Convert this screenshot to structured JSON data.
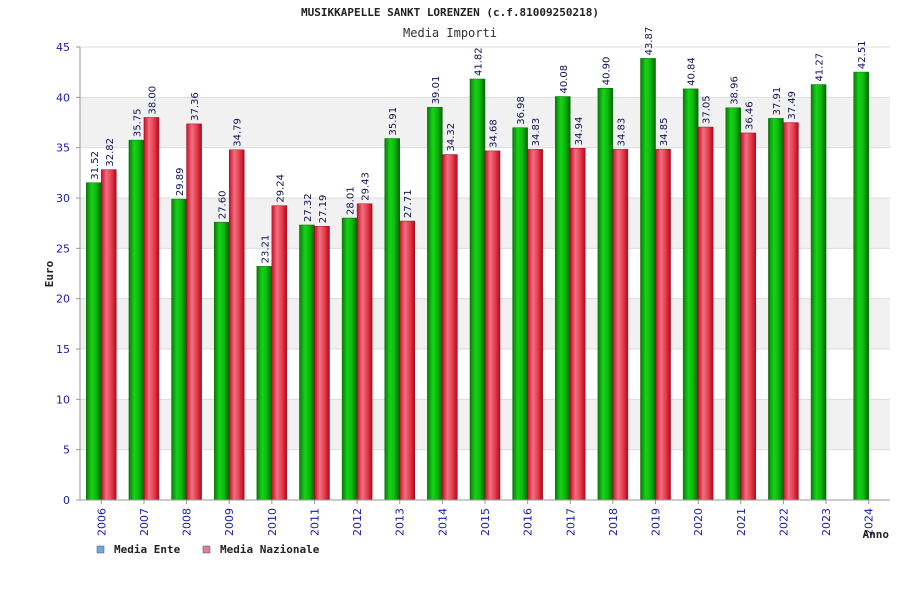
{
  "chart_data": {
    "type": "bar",
    "title": "MUSIKKAPELLE SANKT LORENZEN (c.f.81009250218)",
    "subtitle": "Media Importi",
    "xlabel": "Anno",
    "ylabel": "Euro",
    "ylim": [
      0,
      45
    ],
    "yticks": [
      0,
      5,
      10,
      15,
      20,
      25,
      30,
      35,
      40,
      45
    ],
    "grid": true,
    "legend_position": "bottom-left",
    "categories": [
      "2006",
      "2007",
      "2008",
      "2009",
      "2010",
      "2011",
      "2012",
      "2013",
      "2014",
      "2015",
      "2016",
      "2017",
      "2018",
      "2019",
      "2020",
      "2021",
      "2022",
      "2023",
      "2024"
    ],
    "series": [
      {
        "name": "Media Ente",
        "legend_color": "#6fa8e6",
        "bar_color": "#10b010",
        "values": [
          31.52,
          35.75,
          29.89,
          27.6,
          23.21,
          27.32,
          28.01,
          35.91,
          39.01,
          41.82,
          36.98,
          40.08,
          40.9,
          43.87,
          40.84,
          38.96,
          37.91,
          41.27,
          42.51
        ],
        "labels": [
          "31.52",
          "35.75",
          "29.89",
          "27.60",
          "23.21",
          "27.32",
          "28.01",
          "35.91",
          "39.01",
          "41.82",
          "36.98",
          "40.08",
          "40.90",
          "43.87",
          "40.84",
          "38.96",
          "37.91",
          "41.27",
          "42.51"
        ]
      },
      {
        "name": "Media Nazionale",
        "legend_color": "#e07aa8",
        "bar_color": "#e8283c",
        "values": [
          32.82,
          38.0,
          37.36,
          34.79,
          29.24,
          27.19,
          29.43,
          27.71,
          34.32,
          34.68,
          34.83,
          34.94,
          34.83,
          34.85,
          37.05,
          36.46,
          37.49,
          null,
          null
        ],
        "labels": [
          "32.82",
          "38.00",
          "37.36",
          "34.79",
          "29.24",
          "27.19",
          "29.43",
          "27.71",
          "34.32",
          "34.68",
          "34.83",
          "34.94",
          "34.83",
          "34.85",
          "37.05",
          "36.46",
          "37.49",
          "",
          ""
        ]
      }
    ]
  }
}
